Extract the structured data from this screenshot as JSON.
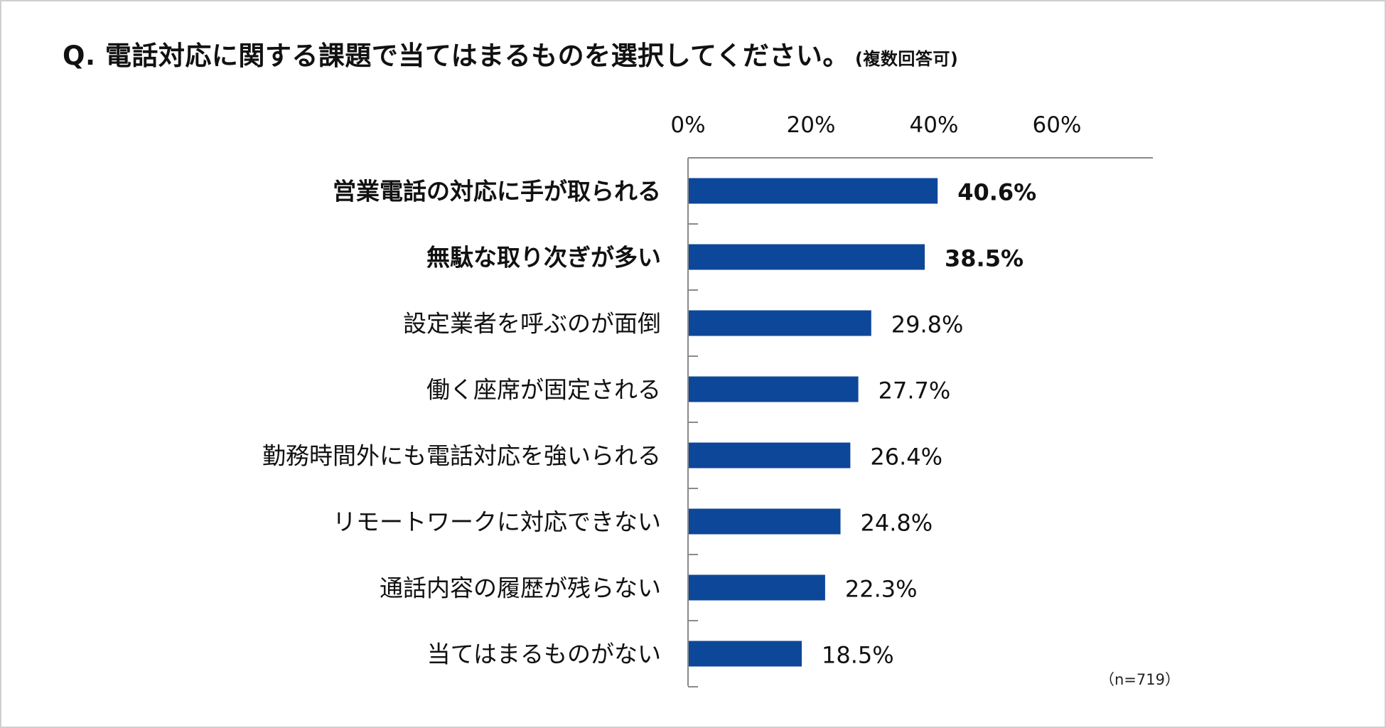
{
  "header": {
    "title": "Q. 電話対応に関する課題で当てはまるものを選択してください。",
    "subtitle": "(複数回答可)"
  },
  "footnote": "（n=719）",
  "chart_data": {
    "type": "bar",
    "orientation": "horizontal",
    "categories": [
      "営業電話の対応に手が取られる",
      "無駄な取り次ぎが多い",
      "設定業者を呼ぶのが面倒",
      "働く座席が固定される",
      "勤務時間外にも電話対応を強いられる",
      "リモートワークに対応できない",
      "通話内容の履歴が残らない",
      "当てはまるものがない"
    ],
    "values": [
      40.6,
      38.5,
      29.8,
      27.7,
      26.4,
      24.8,
      22.3,
      18.5
    ],
    "value_labels": [
      "40.6%",
      "38.5%",
      "29.8%",
      "27.7%",
      "26.4%",
      "24.8%",
      "22.3%",
      "18.5%"
    ],
    "emphasized": [
      true,
      true,
      false,
      false,
      false,
      false,
      false,
      false
    ],
    "xticks": [
      0,
      20,
      40,
      60
    ],
    "xtick_labels": [
      "0%",
      "20%",
      "40%",
      "60%"
    ],
    "xlim": [
      0,
      76
    ],
    "axis_position": "top",
    "grid": false,
    "bar_color": "#0d4799",
    "axis_color": "#8a8a8a"
  }
}
